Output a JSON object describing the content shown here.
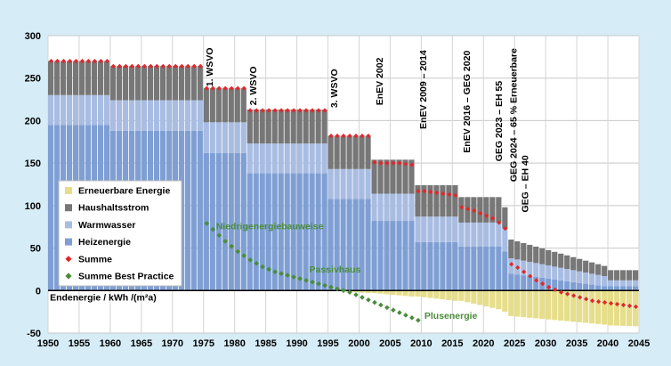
{
  "chart_data": {
    "type": "bar",
    "stacked": true,
    "ylabel": "Endenergie / kWh /(m²a)",
    "ylim": [
      -50,
      300
    ],
    "yticks": [
      -50,
      0,
      50,
      100,
      150,
      200,
      250,
      300
    ],
    "xlim": [
      1950,
      2045
    ],
    "xticks": [
      1950,
      1955,
      1960,
      1965,
      1970,
      1975,
      1980,
      1985,
      1990,
      1995,
      2000,
      2005,
      2010,
      2015,
      2020,
      2025,
      2030,
      2035,
      2040,
      2045
    ],
    "grid": true,
    "legend_position": "left",
    "colors": {
      "erneuerbare": "#e6de8a",
      "haushaltsstrom": "#777777",
      "warmwasser": "#a9bde3",
      "heizenergie": "#7f9fd4",
      "summe": "#e0282c",
      "best_practice": "#4a8c3b",
      "plot_bg": "#ffffff",
      "page_bg": "#d6ecf6"
    },
    "legend": [
      {
        "key": "erneuerbare",
        "label": "Erneuerbare Energie",
        "marker": "square"
      },
      {
        "key": "haushaltsstrom",
        "label": "Haushaltsstrom",
        "marker": "square"
      },
      {
        "key": "warmwasser",
        "label": "Warmwasser",
        "marker": "square"
      },
      {
        "key": "heizenergie",
        "label": "Heizenergie",
        "marker": "square"
      },
      {
        "key": "summe",
        "label": "Summe",
        "marker": "diamond"
      },
      {
        "key": "best_practice",
        "label": "Summe Best Practice",
        "marker": "diamond"
      }
    ],
    "bar_segments": [
      {
        "from": 1950,
        "to": 1960,
        "heizenergie": 195,
        "warmwasser": 35,
        "haushaltsstrom": 40,
        "erneuerbare_start": 0,
        "erneuerbare_end": 0
      },
      {
        "from": 1960,
        "to": 1975,
        "heizenergie": 188,
        "warmwasser": 36,
        "haushaltsstrom": 40,
        "erneuerbare_start": 0,
        "erneuerbare_end": 0
      },
      {
        "from": 1975,
        "to": 1982,
        "heizenergie": 162,
        "warmwasser": 36,
        "haushaltsstrom": 40,
        "erneuerbare_start": 0,
        "erneuerbare_end": 0
      },
      {
        "from": 1982,
        "to": 1995,
        "heizenergie": 138,
        "warmwasser": 35,
        "haushaltsstrom": 40,
        "erneuerbare_start": 0,
        "erneuerbare_end": 0
      },
      {
        "from": 1995,
        "to": 2002,
        "heizenergie": 108,
        "warmwasser": 35,
        "haushaltsstrom": 39,
        "erneuerbare_start": 0,
        "erneuerbare_end": -3
      },
      {
        "from": 2002,
        "to": 2009,
        "heizenergie": 82,
        "warmwasser": 32,
        "haushaltsstrom": 40,
        "erneuerbare_start": -3,
        "erneuerbare_end": -7
      },
      {
        "from": 2009,
        "to": 2016,
        "heizenergie": 57,
        "warmwasser": 30,
        "haushaltsstrom": 37,
        "erneuerbare_start": -7,
        "erneuerbare_end": -12
      },
      {
        "from": 2016,
        "to": 2023,
        "heizenergie": 52,
        "warmwasser": 28,
        "haushaltsstrom": 30,
        "erneuerbare_start": -12,
        "erneuerbare_end": -22
      },
      {
        "from": 2023,
        "to": 2024,
        "heizenergie": 46,
        "warmwasser": 27,
        "haushaltsstrom": 25,
        "erneuerbare_start": -25,
        "erneuerbare_end": -25
      },
      {
        "from": 2024,
        "to": 2040,
        "heizenergie_start": 20,
        "heizenergie_end": 5,
        "warmwasser_start": 18,
        "warmwasser_end": 12,
        "haushaltsstrom_start": 22,
        "haushaltsstrom_end": 12,
        "erneuerbare_start": -30,
        "erneuerbare_end": -40
      },
      {
        "from": 2040,
        "to": 2045,
        "heizenergie": 5,
        "warmwasser": 7,
        "haushaltsstrom": 12,
        "erneuerbare_start": -41,
        "erneuerbare_end": -42
      }
    ],
    "summe": [
      {
        "x": 1950.2,
        "y": 270
      },
      {
        "x": 1951.2,
        "y": 270
      },
      {
        "x": 1952.2,
        "y": 270
      },
      {
        "x": 1953.2,
        "y": 270
      },
      {
        "x": 1954.2,
        "y": 270
      },
      {
        "x": 1955.2,
        "y": 270
      },
      {
        "x": 1956.2,
        "y": 270
      },
      {
        "x": 1957.2,
        "y": 270
      },
      {
        "x": 1958.2,
        "y": 270
      },
      {
        "x": 1959.2,
        "y": 270
      },
      {
        "x": 1960.2,
        "y": 264
      },
      {
        "x": 1961.2,
        "y": 264
      },
      {
        "x": 1962.2,
        "y": 264
      },
      {
        "x": 1963.2,
        "y": 264
      },
      {
        "x": 1964.2,
        "y": 264
      },
      {
        "x": 1965.2,
        "y": 264
      },
      {
        "x": 1966.2,
        "y": 264
      },
      {
        "x": 1967.2,
        "y": 264
      },
      {
        "x": 1968.2,
        "y": 264
      },
      {
        "x": 1969.2,
        "y": 264
      },
      {
        "x": 1970.2,
        "y": 264
      },
      {
        "x": 1971.2,
        "y": 264
      },
      {
        "x": 1972.2,
        "y": 264
      },
      {
        "x": 1973.2,
        "y": 264
      },
      {
        "x": 1974.2,
        "y": 264
      },
      {
        "x": 1975.2,
        "y": 238
      },
      {
        "x": 1976.2,
        "y": 238
      },
      {
        "x": 1977.2,
        "y": 238
      },
      {
        "x": 1978.2,
        "y": 238
      },
      {
        "x": 1979.2,
        "y": 238
      },
      {
        "x": 1980.2,
        "y": 238
      },
      {
        "x": 1981.2,
        "y": 238
      },
      {
        "x": 1982.2,
        "y": 212
      },
      {
        "x": 1983.2,
        "y": 212
      },
      {
        "x": 1984.2,
        "y": 212
      },
      {
        "x": 1985.2,
        "y": 212
      },
      {
        "x": 1986.2,
        "y": 212
      },
      {
        "x": 1987.2,
        "y": 212
      },
      {
        "x": 1988.2,
        "y": 212
      },
      {
        "x": 1989.2,
        "y": 212
      },
      {
        "x": 1990.2,
        "y": 212
      },
      {
        "x": 1991.2,
        "y": 212
      },
      {
        "x": 1992.2,
        "y": 212
      },
      {
        "x": 1993.2,
        "y": 212
      },
      {
        "x": 1994.2,
        "y": 212
      },
      {
        "x": 1995.2,
        "y": 182
      },
      {
        "x": 1996.2,
        "y": 182
      },
      {
        "x": 1997.2,
        "y": 182
      },
      {
        "x": 1998.2,
        "y": 182
      },
      {
        "x": 1999.2,
        "y": 182
      },
      {
        "x": 2000.2,
        "y": 182
      },
      {
        "x": 2001.2,
        "y": 182
      },
      {
        "x": 2002.2,
        "y": 151
      },
      {
        "x": 2003.2,
        "y": 150
      },
      {
        "x": 2004.2,
        "y": 150
      },
      {
        "x": 2005.2,
        "y": 150
      },
      {
        "x": 2006.2,
        "y": 150
      },
      {
        "x": 2007.2,
        "y": 149
      },
      {
        "x": 2008.2,
        "y": 148
      },
      {
        "x": 2009.2,
        "y": 117
      },
      {
        "x": 2010.2,
        "y": 117
      },
      {
        "x": 2011.2,
        "y": 116
      },
      {
        "x": 2012.2,
        "y": 115
      },
      {
        "x": 2013.2,
        "y": 114
      },
      {
        "x": 2014.2,
        "y": 113
      },
      {
        "x": 2015.2,
        "y": 112
      },
      {
        "x": 2016.2,
        "y": 98
      },
      {
        "x": 2017.2,
        "y": 96
      },
      {
        "x": 2018.2,
        "y": 94
      },
      {
        "x": 2019.2,
        "y": 91
      },
      {
        "x": 2020.2,
        "y": 88
      },
      {
        "x": 2021.2,
        "y": 85
      },
      {
        "x": 2022.2,
        "y": 80
      },
      {
        "x": 2023.2,
        "y": 73
      },
      {
        "x": 2024.2,
        "y": 31
      },
      {
        "x": 2025.2,
        "y": 27
      },
      {
        "x": 2026.2,
        "y": 22
      },
      {
        "x": 2027.2,
        "y": 17
      },
      {
        "x": 2028.2,
        "y": 12
      },
      {
        "x": 2029.2,
        "y": 8
      },
      {
        "x": 2030.2,
        "y": 4
      },
      {
        "x": 2031.2,
        "y": 1
      },
      {
        "x": 2032.2,
        "y": -2
      },
      {
        "x": 2033.2,
        "y": -4
      },
      {
        "x": 2034.2,
        "y": -6
      },
      {
        "x": 2035.2,
        "y": -8
      },
      {
        "x": 2036.2,
        "y": -10
      },
      {
        "x": 2037.2,
        "y": -12
      },
      {
        "x": 2038.2,
        "y": -13
      },
      {
        "x": 2039.2,
        "y": -14
      },
      {
        "x": 2040.2,
        "y": -15
      },
      {
        "x": 2041.2,
        "y": -16
      },
      {
        "x": 2042.2,
        "y": -17
      },
      {
        "x": 2043.2,
        "y": -18
      },
      {
        "x": 2044.2,
        "y": -19
      }
    ],
    "best_practice": [
      {
        "x": 1975.2,
        "y": 79
      },
      {
        "x": 1976.2,
        "y": 72
      },
      {
        "x": 1977.2,
        "y": 65
      },
      {
        "x": 1978.2,
        "y": 58
      },
      {
        "x": 1979.2,
        "y": 52
      },
      {
        "x": 1980.2,
        "y": 46
      },
      {
        "x": 1981.2,
        "y": 41
      },
      {
        "x": 1982.2,
        "y": 36
      },
      {
        "x": 1983.2,
        "y": 32
      },
      {
        "x": 1984.2,
        "y": 28
      },
      {
        "x": 1985.2,
        "y": 25
      },
      {
        "x": 1986.2,
        "y": 22
      },
      {
        "x": 1987.2,
        "y": 20
      },
      {
        "x": 1988.2,
        "y": 18
      },
      {
        "x": 1989.2,
        "y": 16
      },
      {
        "x": 1990.2,
        "y": 14
      },
      {
        "x": 1991.2,
        "y": 12
      },
      {
        "x": 1992.2,
        "y": 10
      },
      {
        "x": 1993.2,
        "y": 8
      },
      {
        "x": 1994.2,
        "y": 6
      },
      {
        "x": 1995.2,
        "y": 4
      },
      {
        "x": 1996.2,
        "y": 2
      },
      {
        "x": 1997.2,
        "y": 0
      },
      {
        "x": 1998.2,
        "y": -2
      },
      {
        "x": 1999.2,
        "y": -5
      },
      {
        "x": 2000.2,
        "y": -8
      },
      {
        "x": 2001.2,
        "y": -11
      },
      {
        "x": 2002.2,
        "y": -14
      },
      {
        "x": 2003.2,
        "y": -17
      },
      {
        "x": 2004.2,
        "y": -20
      },
      {
        "x": 2005.2,
        "y": -23
      },
      {
        "x": 2006.2,
        "y": -26
      },
      {
        "x": 2007.2,
        "y": -29
      },
      {
        "x": 2008.2,
        "y": -32
      },
      {
        "x": 2009.2,
        "y": -35
      }
    ],
    "standards": [
      {
        "label": "1. WSVO",
        "x": 1976.5,
        "y": 240
      },
      {
        "label": "2. WSVO",
        "x": 1983.5,
        "y": 218
      },
      {
        "label": "3. WSVO",
        "x": 1996.5,
        "y": 215
      },
      {
        "label": "EnEV 2002",
        "x": 2003.8,
        "y": 218
      },
      {
        "label": "EnEV 2009 – 2014",
        "x": 2010.8,
        "y": 190
      },
      {
        "label": "EnEV 2016 – GEG 2020",
        "x": 2017.8,
        "y": 162
      },
      {
        "label": "GEG 2023 – EH 55",
        "x": 2023.0,
        "y": 152
      },
      {
        "label": "GEG 2024 – 65 % Erneuerbare",
        "x": 2025.3,
        "y": 128
      },
      {
        "label": "GEG – EH 40",
        "x": 2027.2,
        "y": 92
      }
    ],
    "annotations": [
      {
        "label": "Niedrigenergiebauweise",
        "x": 1977,
        "y": 72,
        "color": "#4a8c3b"
      },
      {
        "label": "Passivhaus",
        "x": 1992,
        "y": 21,
        "color": "#4a8c3b"
      },
      {
        "label": "Plusenergie",
        "x": 2010.5,
        "y": -33,
        "color": "#4a8c3b"
      },
      {
        "label": "Endenergie / kWh /(m²a)",
        "x": 1950.3,
        "y": -12,
        "color": "#000000"
      }
    ]
  }
}
